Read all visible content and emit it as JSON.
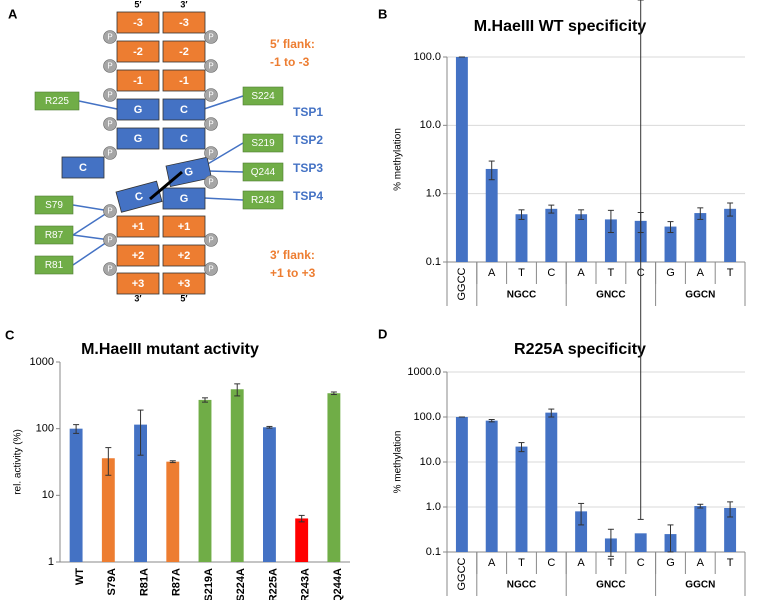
{
  "diagram": {
    "label": "A",
    "top_left": "5′",
    "top_right": "3′",
    "bottom_left": "3′",
    "bottom_right": "5′",
    "phosphate": "P",
    "left_strand": [
      "-3",
      "-2",
      "-1",
      "G",
      "G",
      "C",
      "C",
      "+1",
      "+2",
      "+3"
    ],
    "right_strand": [
      "-3",
      "-2",
      "-1",
      "C",
      "C",
      "G",
      "G",
      "+1",
      "+2",
      "+3"
    ],
    "residues": [
      "R225",
      "S224",
      "S219",
      "Q244",
      "R243",
      "S79",
      "R87",
      "R81"
    ],
    "flank5": [
      "5′ flank:",
      "-1 to -3"
    ],
    "tsp": [
      "TSP1",
      "TSP2",
      "TSP3",
      "TSP4"
    ],
    "flank3": [
      "3′ flank:",
      "+1 to +3"
    ]
  },
  "chart_data": [
    {
      "type": "bar",
      "label": "B",
      "title": "M.HaeIII WT specificity",
      "y_label": "% methylation",
      "log_scale": true,
      "grid": true,
      "color": "#4472c4",
      "categories": [
        "GGCC",
        "A",
        "T",
        "C",
        "A",
        "T",
        "C",
        "G",
        "A",
        "T"
      ],
      "groups": [
        {
          "name": "NGCC",
          "size": 3
        },
        {
          "name": "GNCC",
          "size": 3
        },
        {
          "name": "GGCN",
          "size": 3
        }
      ],
      "values": [
        100,
        2.3,
        0.5,
        0.6,
        0.5,
        0.42,
        0.4,
        0.33,
        0.52,
        0.6
      ],
      "errors": [
        0,
        0.7,
        0.08,
        0.08,
        0.08,
        0.15,
        0.13,
        0.06,
        0.1,
        0.13
      ],
      "ylim": [
        0.1,
        100
      ],
      "yticks": [
        0.1,
        {
          "value": 1,
          "label": "1.0"
        },
        {
          "value": 10,
          "label": "10.0"
        },
        {
          "value": 100,
          "label": "100.0"
        }
      ]
    },
    {
      "type": "bar",
      "label": "C",
      "title": "M.HaeIII mutant activity",
      "y_label": "rel. activity (%)",
      "log_scale": true,
      "grid": false,
      "categories": [
        "WT",
        "S79A",
        "R81A",
        "R87A",
        "S219A",
        "S224A",
        "R225A",
        "R243A",
        "Q244A"
      ],
      "colors": [
        "#4472c4",
        "#ed7d31",
        "#4472c4",
        "#ed7d31",
        "#70ad47",
        "#70ad47",
        "#4472c4",
        "#ff0000",
        "#70ad47"
      ],
      "values": [
        100,
        36,
        115,
        32,
        270,
        390,
        105,
        4.5,
        340
      ],
      "errors": [
        15,
        16,
        75,
        1,
        20,
        80,
        3,
        0.5,
        15
      ],
      "ylim": [
        1,
        1000
      ],
      "yticks": [
        1,
        10,
        100,
        1000
      ]
    },
    {
      "type": "bar",
      "label": "D",
      "title": "R225A specificity",
      "y_label": "% methylation",
      "log_scale": true,
      "grid": true,
      "color": "#4472c4",
      "categories": [
        "GGCC",
        "A",
        "T",
        "C",
        "A",
        "T",
        "C",
        "G",
        "A",
        "T"
      ],
      "groups": [
        {
          "name": "NGCC",
          "size": 3
        },
        {
          "name": "GNCC",
          "size": 3
        },
        {
          "name": "GGCN",
          "size": 3
        }
      ],
      "values": [
        100,
        83,
        22,
        125,
        0.8,
        0.2,
        0.26,
        0.25,
        1.05,
        0.95
      ],
      "errors": [
        0,
        5,
        5,
        25,
        0.4,
        0.12,
        0.27,
        0.15,
        0.1,
        0.35
      ],
      "ylim": [
        0.1,
        1000
      ],
      "yticks": [
        0.1,
        {
          "value": 1,
          "label": "1.0"
        },
        {
          "value": 10,
          "label": "10.0"
        },
        {
          "value": 100,
          "label": "100.0"
        },
        {
          "value": 1000,
          "label": "1000.0"
        }
      ]
    }
  ]
}
